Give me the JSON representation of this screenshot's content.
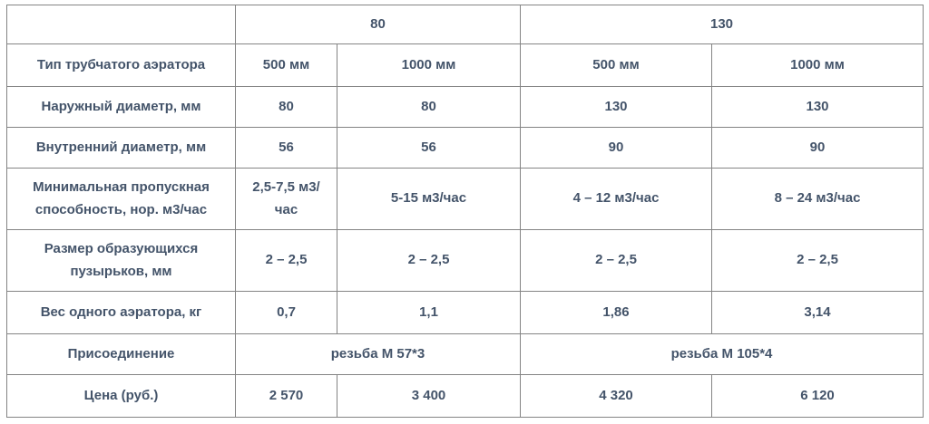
{
  "colors": {
    "text": "#44546a",
    "border": "#848484",
    "background": "#ffffff"
  },
  "table": {
    "corner": "",
    "groups": [
      "80",
      "130"
    ],
    "rows": [
      {
        "label": "Тип  трубчатого аэратора",
        "cells": [
          "500 мм",
          "1000 мм",
          "500 мм",
          "1000 мм"
        ]
      },
      {
        "label": "Наружный диаметр, мм",
        "cells": [
          "80",
          "80",
          "130",
          "130"
        ]
      },
      {
        "label": "Внутренний диаметр, мм",
        "cells": [
          "56",
          "56",
          "90",
          "90"
        ]
      },
      {
        "label": "Минимальная пропускная способность, нор. м3/час",
        "cells": [
          "2,5-7,5 м3/час",
          "5-15 м3/час",
          "4 – 12 м3/час",
          "8 – 24 м3/час"
        ]
      },
      {
        "label": "Размер образующихся пузырьков, мм",
        "cells": [
          "2 – 2,5",
          "2 – 2,5",
          "2 – 2,5",
          "2 – 2,5"
        ]
      },
      {
        "label": "Вес одного аэратора, кг",
        "cells": [
          "0,7",
          "1,1",
          "1,86",
          "3,14"
        ]
      },
      {
        "label": "Присоединение",
        "merged_cells": [
          "резьба М 57*3",
          "резьба М 105*4"
        ]
      },
      {
        "label": "Цена (руб.)",
        "cells": [
          "2 570",
          "3 400",
          "4 320",
          "6 120"
        ]
      }
    ]
  }
}
